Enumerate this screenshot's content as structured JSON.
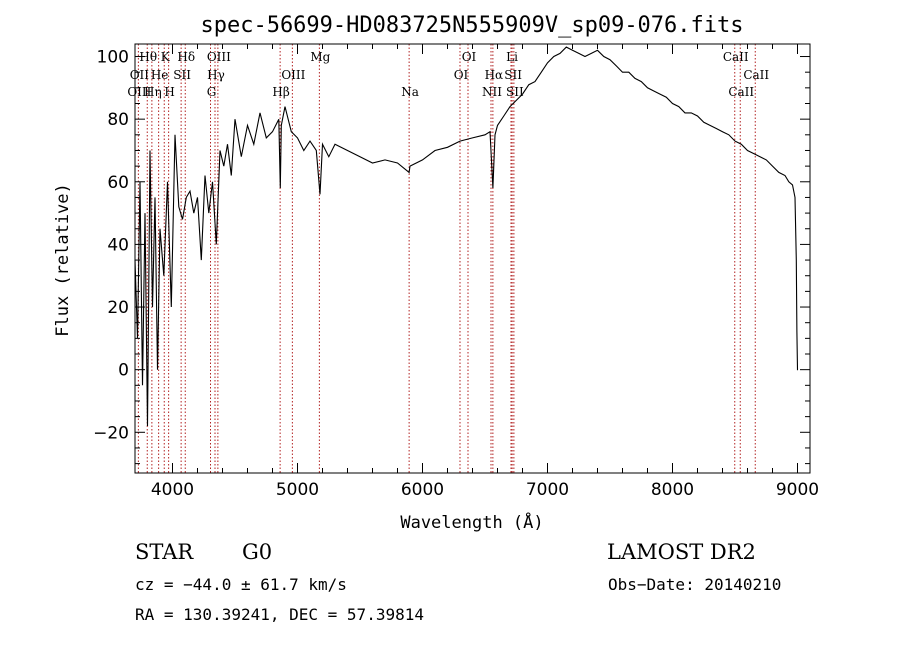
{
  "chart_data": {
    "type": "line",
    "title": "spec-56699-HD083725N555909V_sp09-076.fits",
    "xlabel": "Wavelength (Å)",
    "ylabel": "Flux (relative)",
    "xlim": [
      3700,
      9100
    ],
    "ylim": [
      -33,
      104
    ],
    "xticks": [
      4000,
      5000,
      6000,
      7000,
      8000,
      9000
    ],
    "yticks": [
      -20,
      0,
      20,
      40,
      60,
      80,
      100
    ],
    "ytick_labels": [
      "−20",
      "0",
      "20",
      "40",
      "60",
      "80",
      "100"
    ],
    "grid": false,
    "line_color": "#000000",
    "marker_color": "#b22222",
    "series": [
      {
        "x": [
          3700,
          3720,
          3740,
          3760,
          3780,
          3800,
          3820,
          3840,
          3860,
          3880,
          3900,
          3930,
          3960,
          3990,
          4020,
          4050,
          4080,
          4110,
          4140,
          4170,
          4200,
          4230,
          4260,
          4290,
          4320,
          4350,
          4380,
          4410,
          4440,
          4470,
          4500,
          4550,
          4600,
          4650,
          4700,
          4750,
          4800,
          4850,
          4862,
          4870,
          4900,
          4950,
          5000,
          5050,
          5100,
          5150,
          5180,
          5200,
          5250,
          5300,
          5400,
          5500,
          5600,
          5700,
          5800,
          5893,
          5900,
          6000,
          6100,
          6200,
          6300,
          6400,
          6500,
          6540,
          6563,
          6580,
          6600,
          6650,
          6700,
          6750,
          6800,
          6850,
          6900,
          6950,
          7000,
          7050,
          7100,
          7150,
          7200,
          7250,
          7300,
          7350,
          7400,
          7450,
          7500,
          7550,
          7600,
          7650,
          7700,
          7750,
          7800,
          7850,
          7900,
          7950,
          8000,
          8050,
          8100,
          8150,
          8200,
          8250,
          8300,
          8350,
          8400,
          8450,
          8500,
          8550,
          8600,
          8650,
          8700,
          8750,
          8800,
          8850,
          8900,
          8930,
          8960,
          8980,
          8990,
          8995,
          9000,
          9003
        ],
        "y": [
          35,
          10,
          60,
          -5,
          50,
          -18,
          70,
          20,
          55,
          0,
          45,
          30,
          60,
          20,
          75,
          52,
          48,
          55,
          57,
          50,
          55,
          35,
          62,
          50,
          60,
          40,
          70,
          65,
          72,
          62,
          80,
          68,
          78,
          72,
          82,
          74,
          76,
          80,
          58,
          78,
          84,
          76,
          74,
          70,
          73,
          70,
          56,
          72,
          68,
          72,
          70,
          68,
          66,
          67,
          66,
          63,
          65,
          67,
          70,
          71,
          73,
          74,
          75,
          76,
          58,
          75,
          78,
          81,
          84,
          86,
          88,
          91,
          92,
          95,
          98,
          100,
          101,
          103,
          102,
          101,
          100,
          101,
          102,
          100,
          99,
          97,
          95,
          95,
          93,
          92,
          90,
          89,
          88,
          87,
          85,
          84,
          82,
          82,
          81,
          79,
          78,
          77,
          76,
          75,
          73,
          72,
          70,
          69,
          68,
          67,
          65,
          63,
          62,
          60,
          59,
          55,
          35,
          12,
          0,
          0
        ]
      }
    ],
    "line_markers": [
      {
        "label": "Hθ",
        "wave": 3798,
        "row": 0
      },
      {
        "label": "K",
        "wave": 3934,
        "row": 0
      },
      {
        "label": "Hδ",
        "wave": 4102,
        "row": 0
      },
      {
        "label": "OIII",
        "wave": 4363,
        "row": 0
      },
      {
        "label": "Mg",
        "wave": 5175,
        "row": 0
      },
      {
        "label": "OI",
        "wave": 6364,
        "row": 0
      },
      {
        "label": "Li",
        "wave": 6708,
        "row": 0
      },
      {
        "label": "CaII",
        "wave": 8498,
        "row": 0
      },
      {
        "label": "OII",
        "wave": 3727,
        "row": 1
      },
      {
        "label": "He",
        "wave": 3889,
        "row": 1
      },
      {
        "label": "SII",
        "wave": 4069,
        "row": 1
      },
      {
        "label": "Hγ",
        "wave": 4340,
        "row": 1
      },
      {
        "label": "OIII",
        "wave": 4959,
        "row": 1
      },
      {
        "label": "OI",
        "wave": 6300,
        "row": 1
      },
      {
        "label": "Hα",
        "wave": 6563,
        "row": 1
      },
      {
        "label": "SII",
        "wave": 6717,
        "row": 1
      },
      {
        "label": "CaII",
        "wave": 8662,
        "row": 1
      },
      {
        "label": "OIII",
        "wave": 3727,
        "row": 2
      },
      {
        "label": "Hη",
        "wave": 3835,
        "row": 2
      },
      {
        "label": "H",
        "wave": 3969,
        "row": 2
      },
      {
        "label": "G",
        "wave": 4304,
        "row": 2
      },
      {
        "label": "Hβ",
        "wave": 4861,
        "row": 2
      },
      {
        "label": "Na",
        "wave": 5893,
        "row": 2
      },
      {
        "label": "NII",
        "wave": 6548,
        "row": 2
      },
      {
        "label": "SII",
        "wave": 6731,
        "row": 2
      },
      {
        "label": "CaII",
        "wave": 8542,
        "row": 2
      }
    ],
    "marker_lines": [
      3727,
      3798,
      3835,
      3889,
      3934,
      3969,
      4069,
      4102,
      4304,
      4340,
      4363,
      4861,
      4959,
      5175,
      5893,
      6300,
      6364,
      6548,
      6563,
      6708,
      6717,
      6731,
      8498,
      8542,
      8662
    ]
  },
  "info": {
    "class": "STAR",
    "subclass": "G0",
    "survey": "LAMOST DR2",
    "cz": "cz = −44.0 ± 61.7 km/s",
    "obsdate": "Obs−Date: 20140210",
    "radec": "RA = 130.39241, DEC =  57.39814"
  }
}
